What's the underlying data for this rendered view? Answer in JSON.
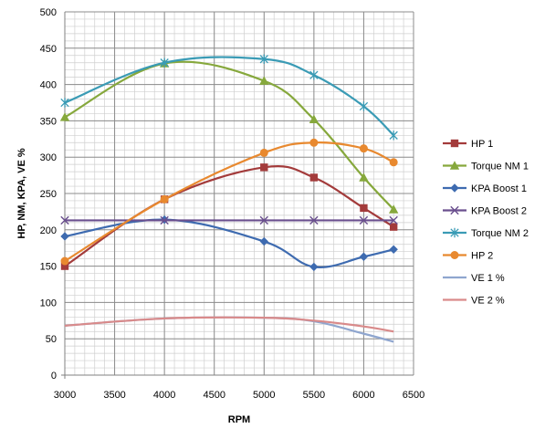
{
  "chart_data": {
    "type": "line",
    "xlabel": "RPM",
    "ylabel": "HP, NM, KPA, VE %",
    "xlim": [
      3000,
      6500
    ],
    "ylim": [
      0,
      500
    ],
    "xticks": [
      3000,
      3500,
      4000,
      4500,
      5000,
      5500,
      6000,
      6500
    ],
    "yticks": [
      0,
      50,
      100,
      150,
      200,
      250,
      300,
      350,
      400,
      450,
      500
    ],
    "grid": true,
    "legend_position": "right",
    "series": [
      {
        "name": "HP 1",
        "color": "#A33B3B",
        "marker": "square",
        "points": [
          [
            3000,
            150
          ],
          [
            4000,
            242
          ],
          [
            5000,
            286
          ],
          [
            5500,
            272
          ],
          [
            6000,
            230
          ],
          [
            6300,
            204
          ]
        ]
      },
      {
        "name": "Torque NM 1",
        "color": "#86A83C",
        "marker": "triangle",
        "points": [
          [
            3000,
            355
          ],
          [
            4000,
            429
          ],
          [
            5000,
            405
          ],
          [
            5500,
            352
          ],
          [
            6000,
            272
          ],
          [
            6300,
            228
          ]
        ]
      },
      {
        "name": "KPA Boost 1",
        "color": "#3E6BB0",
        "marker": "diamond",
        "points": [
          [
            3000,
            191
          ],
          [
            4000,
            214
          ],
          [
            5000,
            184
          ],
          [
            5500,
            149
          ],
          [
            6000,
            163
          ],
          [
            6300,
            173
          ]
        ]
      },
      {
        "name": "KPA Boost 2",
        "color": "#6A4F8E",
        "marker": "x",
        "points": [
          [
            3000,
            213
          ],
          [
            4000,
            213
          ],
          [
            5000,
            213
          ],
          [
            5500,
            213
          ],
          [
            6000,
            213
          ],
          [
            6300,
            213
          ]
        ]
      },
      {
        "name": "Torque NM 2",
        "color": "#3A9BB5",
        "marker": "star",
        "points": [
          [
            3000,
            375
          ],
          [
            4000,
            430
          ],
          [
            5000,
            435
          ],
          [
            5500,
            413
          ],
          [
            6000,
            370
          ],
          [
            6300,
            330
          ]
        ]
      },
      {
        "name": "HP 2",
        "color": "#E8892F",
        "marker": "circle",
        "points": [
          [
            3000,
            157
          ],
          [
            4000,
            242
          ],
          [
            5000,
            306
          ],
          [
            5500,
            320
          ],
          [
            6000,
            312
          ],
          [
            6300,
            293
          ]
        ]
      },
      {
        "name": "VE 1 %",
        "color": "#8FA6CF",
        "marker": "dash",
        "points": [
          [
            3000,
            68
          ],
          [
            4000,
            78
          ],
          [
            5000,
            79
          ],
          [
            5500,
            74
          ],
          [
            6000,
            57
          ],
          [
            6300,
            46
          ]
        ]
      },
      {
        "name": "VE 2 %",
        "color": "#D98A8A",
        "marker": "dash",
        "points": [
          [
            3000,
            68
          ],
          [
            4000,
            78
          ],
          [
            5000,
            79
          ],
          [
            5500,
            75
          ],
          [
            6000,
            67
          ],
          [
            6300,
            60
          ]
        ]
      }
    ]
  }
}
